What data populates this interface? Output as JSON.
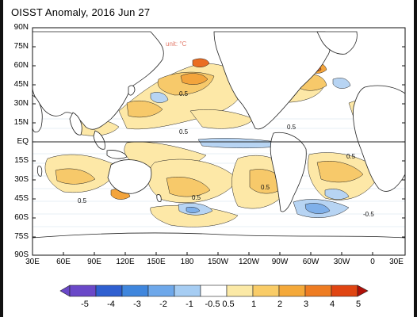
{
  "title": "OISST Anomaly, 2016 Jun 27",
  "unit_label": "unit: °C",
  "lat_labels": [
    "90N",
    "75N",
    "60N",
    "45N",
    "30N",
    "15N",
    "EQ",
    "15S",
    "30S",
    "45S",
    "60S",
    "75S",
    "90S"
  ],
  "lon_labels": [
    "30E",
    "60E",
    "90E",
    "120E",
    "150E",
    "180",
    "150W",
    "120W",
    "90W",
    "60W",
    "30W",
    "0",
    "30E"
  ],
  "contour_labels": [
    "0.5",
    "0.5",
    "0.5",
    "0.5",
    "0.5",
    "0.5",
    "0.5",
    "-0.5"
  ],
  "colorbar": {
    "labels": [
      "-5",
      "-4",
      "-3",
      "-2",
      "-1",
      "-0.5",
      "0.5",
      "1",
      "2",
      "3",
      "4",
      "5"
    ],
    "colors": [
      "#6a48c8",
      "#2f5fd0",
      "#3f86dd",
      "#6ea8ea",
      "#a6cdf3",
      "#ffffff",
      "#fbe9a6",
      "#f9cc67",
      "#f4a93a",
      "#ee7c22",
      "#e04512"
    ]
  },
  "colors": {
    "warm_light": "#fde8a7",
    "warm": "#f7c96a",
    "warm_strong": "#f3a43c",
    "hot": "#ea6d22",
    "cool_light": "#b7d4f3",
    "cool": "#7fb0ea",
    "cold": "#4d87d8"
  }
}
